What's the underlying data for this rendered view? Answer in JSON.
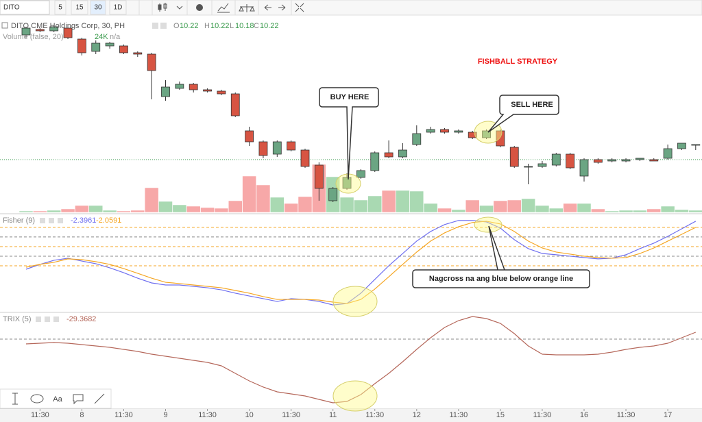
{
  "toolbar": {
    "symbol": "DITO",
    "intervals": [
      "5",
      "15",
      "30",
      "1D"
    ],
    "active_interval": 2
  },
  "price_chart": {
    "title": "DITO CME Holdings Corp, 30, PH",
    "ohlc": [
      {
        "label": "O",
        "value": 10.22
      },
      {
        "label": "H",
        "value": 10.22
      },
      {
        "label": "L",
        "value": 10.18
      },
      {
        "label": "C",
        "value": 10.22
      }
    ],
    "volume_label": "Volume (false, 20)",
    "volume_value": "24K",
    "volume_ma": "n/a",
    "up_color": "#6ba583",
    "down_color": "#d75442",
    "volume_up_color": "#a9d9b2",
    "volume_down_color": "#f7a8a8",
    "ylim": [
      9.725,
      11.15
    ],
    "volume_lim": [
      0,
      2280
    ],
    "price_line": 10.11,
    "candles": [
      [
        11.02,
        11.08,
        11.0,
        11.07
      ],
      [
        11.06,
        11.07,
        11.04,
        11.05
      ],
      [
        11.05,
        11.09,
        11.04,
        11.08
      ],
      [
        11.07,
        11.08,
        10.99,
        11.0
      ],
      [
        10.99,
        11.0,
        10.87,
        10.89
      ],
      [
        10.9,
        10.98,
        10.88,
        10.96
      ],
      [
        10.94,
        10.97,
        10.92,
        10.96
      ],
      [
        10.94,
        10.95,
        10.88,
        10.89
      ],
      [
        10.89,
        10.9,
        10.86,
        10.88
      ],
      [
        10.88,
        10.89,
        10.55,
        10.76
      ],
      [
        10.57,
        10.69,
        10.54,
        10.64
      ],
      [
        10.63,
        10.68,
        10.62,
        10.66
      ],
      [
        10.66,
        10.67,
        10.6,
        10.62
      ],
      [
        10.62,
        10.63,
        10.6,
        10.61
      ],
      [
        10.61,
        10.62,
        10.58,
        10.59
      ],
      [
        10.59,
        10.6,
        10.42,
        10.43
      ],
      [
        10.32,
        10.35,
        10.21,
        10.24
      ],
      [
        10.24,
        10.25,
        10.12,
        10.14
      ],
      [
        10.15,
        10.25,
        10.13,
        10.24
      ],
      [
        10.24,
        10.25,
        10.17,
        10.18
      ],
      [
        10.18,
        10.19,
        10.05,
        10.06
      ],
      [
        10.07,
        10.09,
        9.81,
        9.9
      ],
      [
        9.81,
        9.91,
        9.8,
        9.9
      ],
      [
        9.9,
        10.01,
        9.89,
        9.98
      ],
      [
        9.98,
        10.04,
        9.97,
        10.03
      ],
      [
        10.03,
        10.17,
        10.02,
        10.16
      ],
      [
        10.16,
        10.25,
        10.12,
        10.13
      ],
      [
        10.13,
        10.23,
        10.12,
        10.18
      ],
      [
        10.22,
        10.36,
        10.21,
        10.3
      ],
      [
        10.31,
        10.35,
        10.3,
        10.33
      ],
      [
        10.33,
        10.34,
        10.3,
        10.31
      ],
      [
        10.31,
        10.33,
        10.3,
        10.32
      ],
      [
        10.31,
        10.32,
        10.26,
        10.27
      ],
      [
        10.27,
        10.33,
        10.26,
        10.32
      ],
      [
        10.32,
        10.33,
        10.2,
        10.21
      ],
      [
        10.2,
        10.21,
        10.05,
        10.06
      ],
      [
        10.06,
        10.08,
        9.93,
        10.06
      ],
      [
        10.06,
        10.1,
        10.05,
        10.08
      ],
      [
        10.07,
        10.16,
        10.06,
        10.15
      ],
      [
        10.15,
        10.16,
        10.04,
        10.05
      ],
      [
        9.99,
        10.12,
        9.95,
        10.11
      ],
      [
        10.11,
        10.12,
        10.08,
        10.09
      ],
      [
        10.1,
        10.12,
        10.09,
        10.11
      ],
      [
        10.1,
        10.12,
        10.09,
        10.11
      ],
      [
        10.11,
        10.12,
        10.1,
        10.12
      ],
      [
        10.11,
        10.12,
        10.1,
        10.1
      ],
      [
        10.12,
        10.22,
        10.11,
        10.19
      ],
      [
        10.19,
        10.23,
        10.18,
        10.23
      ],
      [
        10.22,
        10.22,
        10.18,
        10.22
      ]
    ],
    "volume": [
      16,
      16,
      24,
      40,
      80,
      80,
      24,
      16,
      24,
      288,
      128,
      88,
      72,
      56,
      48,
      136,
      424,
      320,
      176,
      104,
      184,
      560,
      416,
      176,
      144,
      192,
      256,
      256,
      248,
      104,
      48,
      32,
      144,
      80,
      136,
      144,
      160,
      80,
      48,
      104,
      104,
      40,
      16,
      24,
      24,
      40,
      72,
      32,
      24
    ]
  },
  "fisher": {
    "label": "Fisher (9)",
    "ylim": [
      -5.09,
      2.46
    ],
    "levels": [
      {
        "value": 1.5,
        "color": "#f5a623"
      },
      {
        "value": 0.75,
        "color": "#888888"
      },
      {
        "value": 0,
        "color": "#f5a623"
      },
      {
        "value": -0.75,
        "color": "#888888"
      },
      {
        "value": -1.5,
        "color": "#f5a623"
      }
    ],
    "series": [
      {
        "name": -2.3961,
        "color": "#6f6ff0",
        "values": [
          -1.77,
          -1.39,
          -1.07,
          -0.91,
          -1.13,
          -1.34,
          -1.66,
          -2.04,
          -2.47,
          -2.84,
          -3.0,
          -3.0,
          -3.11,
          -3.22,
          -3.38,
          -3.64,
          -3.86,
          -4.07,
          -4.29,
          -4.07,
          -4.13,
          -4.29,
          -4.56,
          -4.45,
          -3.64,
          -2.57,
          -1.5,
          -0.54,
          0.43,
          1.18,
          1.72,
          2.04,
          2.04,
          1.93,
          1.45,
          0.54,
          -0.16,
          -0.54,
          -0.64,
          -0.75,
          -0.86,
          -0.96,
          -0.91,
          -0.64,
          -0.16,
          0.27,
          0.8,
          1.39,
          1.98
        ]
      },
      {
        "name": -2.0591,
        "color": "#f5a623",
        "values": [
          -1.61,
          -1.39,
          -1.23,
          -0.96,
          -1.02,
          -1.18,
          -1.39,
          -1.72,
          -2.09,
          -2.47,
          -2.79,
          -2.89,
          -3.0,
          -3.11,
          -3.22,
          -3.43,
          -3.64,
          -3.91,
          -4.13,
          -4.13,
          -4.13,
          -4.18,
          -4.34,
          -4.45,
          -4.13,
          -3.32,
          -2.36,
          -1.39,
          -0.43,
          0.43,
          1.07,
          1.55,
          1.88,
          1.98,
          1.77,
          1.18,
          0.43,
          -0.11,
          -0.43,
          -0.59,
          -0.75,
          -0.86,
          -0.91,
          -0.86,
          -0.54,
          -0.11,
          0.43,
          0.96,
          1.5
        ]
      }
    ]
  },
  "trix": {
    "label": "TRIX (5)",
    "ylim": [
      -100,
      37
    ],
    "level": 0,
    "series": [
      {
        "name": -29.3682,
        "color": "#b5675a",
        "values": [
          -7,
          -6,
          -5,
          -6,
          -8,
          -10,
          -12,
          -15,
          -18,
          -22,
          -25,
          -28,
          -31,
          -34,
          -39,
          -50,
          -61,
          -70,
          -77,
          -80,
          -83,
          -88,
          -93,
          -91,
          -81,
          -65,
          -50,
          -33,
          -15,
          2,
          17,
          27,
          33,
          30,
          23,
          8,
          -10,
          -22,
          -23,
          -23,
          -23,
          -22,
          -19,
          -15,
          -12,
          -10,
          -6,
          2,
          10
        ]
      }
    ]
  },
  "x_axis": {
    "categories": [
      null,
      "11:30",
      null,
      null,
      "8",
      null,
      null,
      "11:30",
      null,
      null,
      "9",
      null,
      null,
      "11:30",
      null,
      null,
      "10",
      null,
      null,
      "11:30",
      null,
      null,
      "11",
      null,
      null,
      "11:30",
      null,
      null,
      "12",
      null,
      null,
      "11:30",
      null,
      null,
      "15",
      null,
      null,
      "11:30",
      null,
      null,
      "16",
      null,
      null,
      "11:30",
      null,
      null,
      "17",
      null,
      null
    ]
  },
  "annotations": {
    "title": "FISHBALL STRATEGY",
    "buy": "BUY HERE",
    "sell": "SELL HERE",
    "cross": "Nagcross na ang blue below orange line"
  },
  "drawing_tools": {
    "text_tool": "Aa"
  }
}
